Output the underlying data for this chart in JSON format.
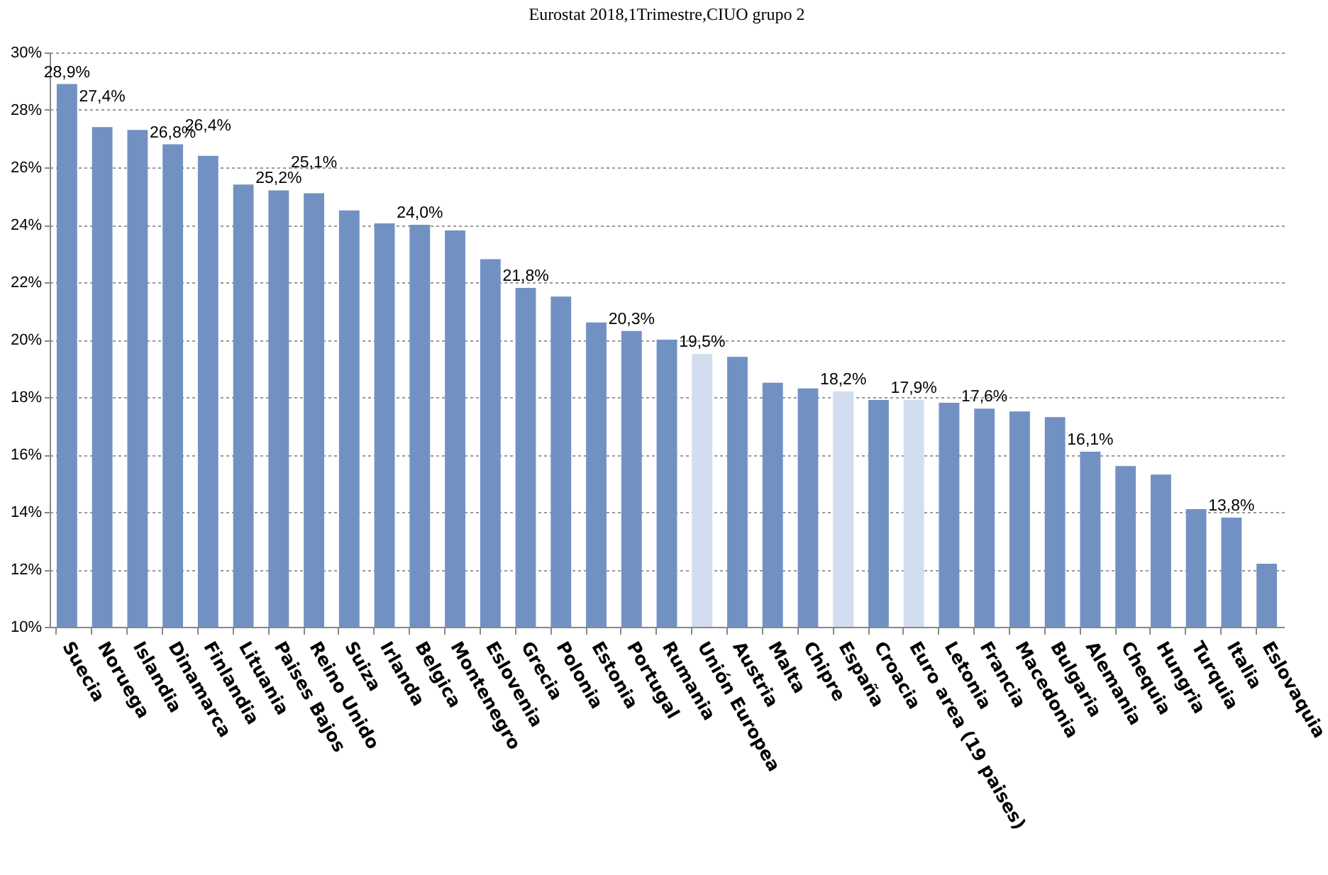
{
  "chart_data": {
    "type": "bar",
    "title": "Eurostat 2018,1Trimestre,CIUO  grupo 2",
    "categories": [
      "Suecia",
      "Noruega",
      "Islandia",
      "Dinamarca",
      "Finlandia",
      "Lituania",
      "Paises Bajos",
      "Reino Unido",
      "Suiza",
      "Irlanda",
      "Belgica",
      "Montenegro",
      "Eslovenia",
      "Grecia",
      "Polonia",
      "Estonia",
      "Portugal",
      "Rumania",
      "Unión Europea",
      "Austria",
      "Malta",
      "Chipre",
      "España",
      "Croacia",
      "Euro area (19 paises)",
      "Letonia",
      "Francia",
      "Macedonia",
      "Bulgaria",
      "Alemania",
      "Chequia",
      "Hungria",
      "Turquia",
      "Italia",
      "Eslovaquia"
    ],
    "values": [
      28.9,
      27.4,
      27.3,
      26.8,
      26.4,
      25.4,
      25.2,
      25.1,
      24.5,
      24.05,
      24.0,
      23.8,
      22.8,
      21.8,
      21.5,
      20.6,
      20.3,
      20.0,
      19.5,
      19.4,
      18.5,
      18.3,
      18.2,
      17.9,
      17.9,
      17.8,
      17.6,
      17.5,
      17.3,
      16.1,
      15.6,
      15.3,
      14.1,
      13.8,
      12.2
    ],
    "value_labels": [
      "28,9%",
      "27,4%",
      null,
      "26,8%",
      "26,4%",
      null,
      "25,2%",
      "25,1%",
      null,
      null,
      "24,0%",
      null,
      null,
      "21,8%",
      null,
      null,
      "20,3%",
      null,
      "19,5%",
      null,
      null,
      null,
      "18,2%",
      null,
      "17,9%",
      null,
      "17,6%",
      null,
      null,
      "16,1%",
      null,
      null,
      null,
      "13,8%",
      null
    ],
    "colors": [
      "#7291c3",
      "#7291c3",
      "#7291c3",
      "#7291c3",
      "#7291c3",
      "#7291c3",
      "#7291c3",
      "#7291c3",
      "#7291c3",
      "#7291c3",
      "#7291c3",
      "#7291c3",
      "#7291c3",
      "#7291c3",
      "#7291c3",
      "#7291c3",
      "#7291c3",
      "#7291c3",
      "#d2ddef",
      "#7291c3",
      "#7291c3",
      "#7291c3",
      "#d2ddef",
      "#7291c3",
      "#d2ddef",
      "#7291c3",
      "#7291c3",
      "#7291c3",
      "#7291c3",
      "#7291c3",
      "#7291c3",
      "#7291c3",
      "#7291c3",
      "#7291c3",
      "#7291c3"
    ],
    "ylim": [
      10,
      30
    ],
    "yticks": [
      {
        "value": 10,
        "label": "10%"
      },
      {
        "value": 12,
        "label": "12%"
      },
      {
        "value": 14,
        "label": "14%"
      },
      {
        "value": 16,
        "label": "16%"
      },
      {
        "value": 18,
        "label": "18%"
      },
      {
        "value": 20,
        "label": "20%"
      },
      {
        "value": 22,
        "label": "22%"
      },
      {
        "value": 24,
        "label": "24%"
      },
      {
        "value": 26,
        "label": "26%"
      },
      {
        "value": 28,
        "label": "28%"
      },
      {
        "value": 30,
        "label": "30%"
      }
    ],
    "grid": "y"
  }
}
